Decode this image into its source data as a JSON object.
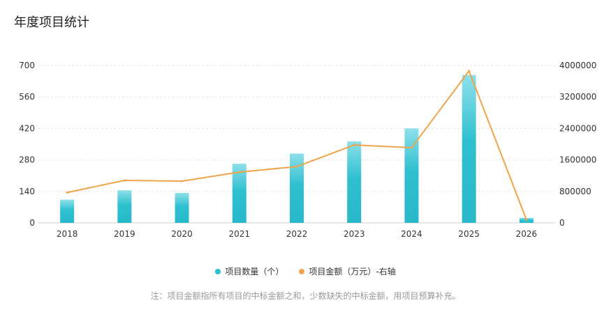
{
  "title": "年度项目统计",
  "chart_data": {
    "type": "bar",
    "categories": [
      "2018",
      "2019",
      "2020",
      "2021",
      "2022",
      "2023",
      "2024",
      "2025",
      "2026"
    ],
    "series": [
      {
        "name": "项目数量（个）",
        "type": "bar",
        "axis": "left",
        "color": "#2bbfcf",
        "values": [
          103,
          145,
          133,
          263,
          308,
          362,
          420,
          658,
          22
        ]
      },
      {
        "name": "项目金额（万元）-右轴",
        "type": "line",
        "axis": "right",
        "color": "#f0a44a",
        "values": [
          770000,
          1080000,
          1060000,
          1290000,
          1430000,
          1980000,
          1910000,
          3860000,
          80000
        ]
      }
    ],
    "y_left": {
      "ticks": [
        0,
        140,
        280,
        420,
        560,
        700
      ],
      "range": [
        0,
        700
      ]
    },
    "y_right": {
      "ticks": [
        0,
        800000,
        1600000,
        2400000,
        3200000,
        4000000
      ],
      "range": [
        0,
        4000000
      ]
    },
    "grid": true,
    "legend_position": "bottom-center"
  },
  "legend": {
    "bar_label": "项目数量（个）",
    "line_label": "项目金额（万元）-右轴",
    "bar_color": "#2bbfcf",
    "line_color": "#f0a44a"
  },
  "note": "注：项目金额指所有项目的中标金额之和，少数缺失的中标金额，用项目预算补充。"
}
